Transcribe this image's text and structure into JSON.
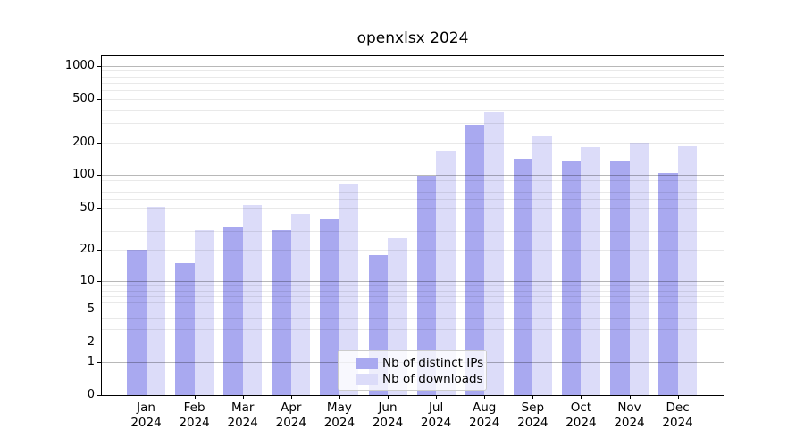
{
  "chart_data": {
    "type": "bar",
    "title": "openxlsx 2024",
    "categories": [
      "Jan",
      "Feb",
      "Mar",
      "Apr",
      "May",
      "Jun",
      "Jul",
      "Aug",
      "Sep",
      "Oct",
      "Nov",
      "Dec"
    ],
    "x_tick_second_line": "2024",
    "series": [
      {
        "name": "Nb of distinct IPs",
        "color": "#a9a9f0",
        "values": [
          20,
          15,
          33,
          31,
          40,
          18,
          99,
          286,
          142,
          137,
          133,
          105
        ]
      },
      {
        "name": "Nb of downloads",
        "color": "#dcdcf9",
        "values": [
          51,
          31,
          53,
          44,
          84,
          26,
          166,
          378,
          230,
          180,
          197,
          185
        ]
      }
    ],
    "y_axis": {
      "scale": "log1p",
      "ticks": [
        0,
        1,
        2,
        5,
        10,
        20,
        50,
        100,
        200,
        500,
        1000
      ],
      "major_grid_values": [
        1,
        10,
        100,
        1000
      ],
      "ylim": [
        0,
        1220
      ]
    },
    "grid": true,
    "legend_position": "lower center"
  }
}
